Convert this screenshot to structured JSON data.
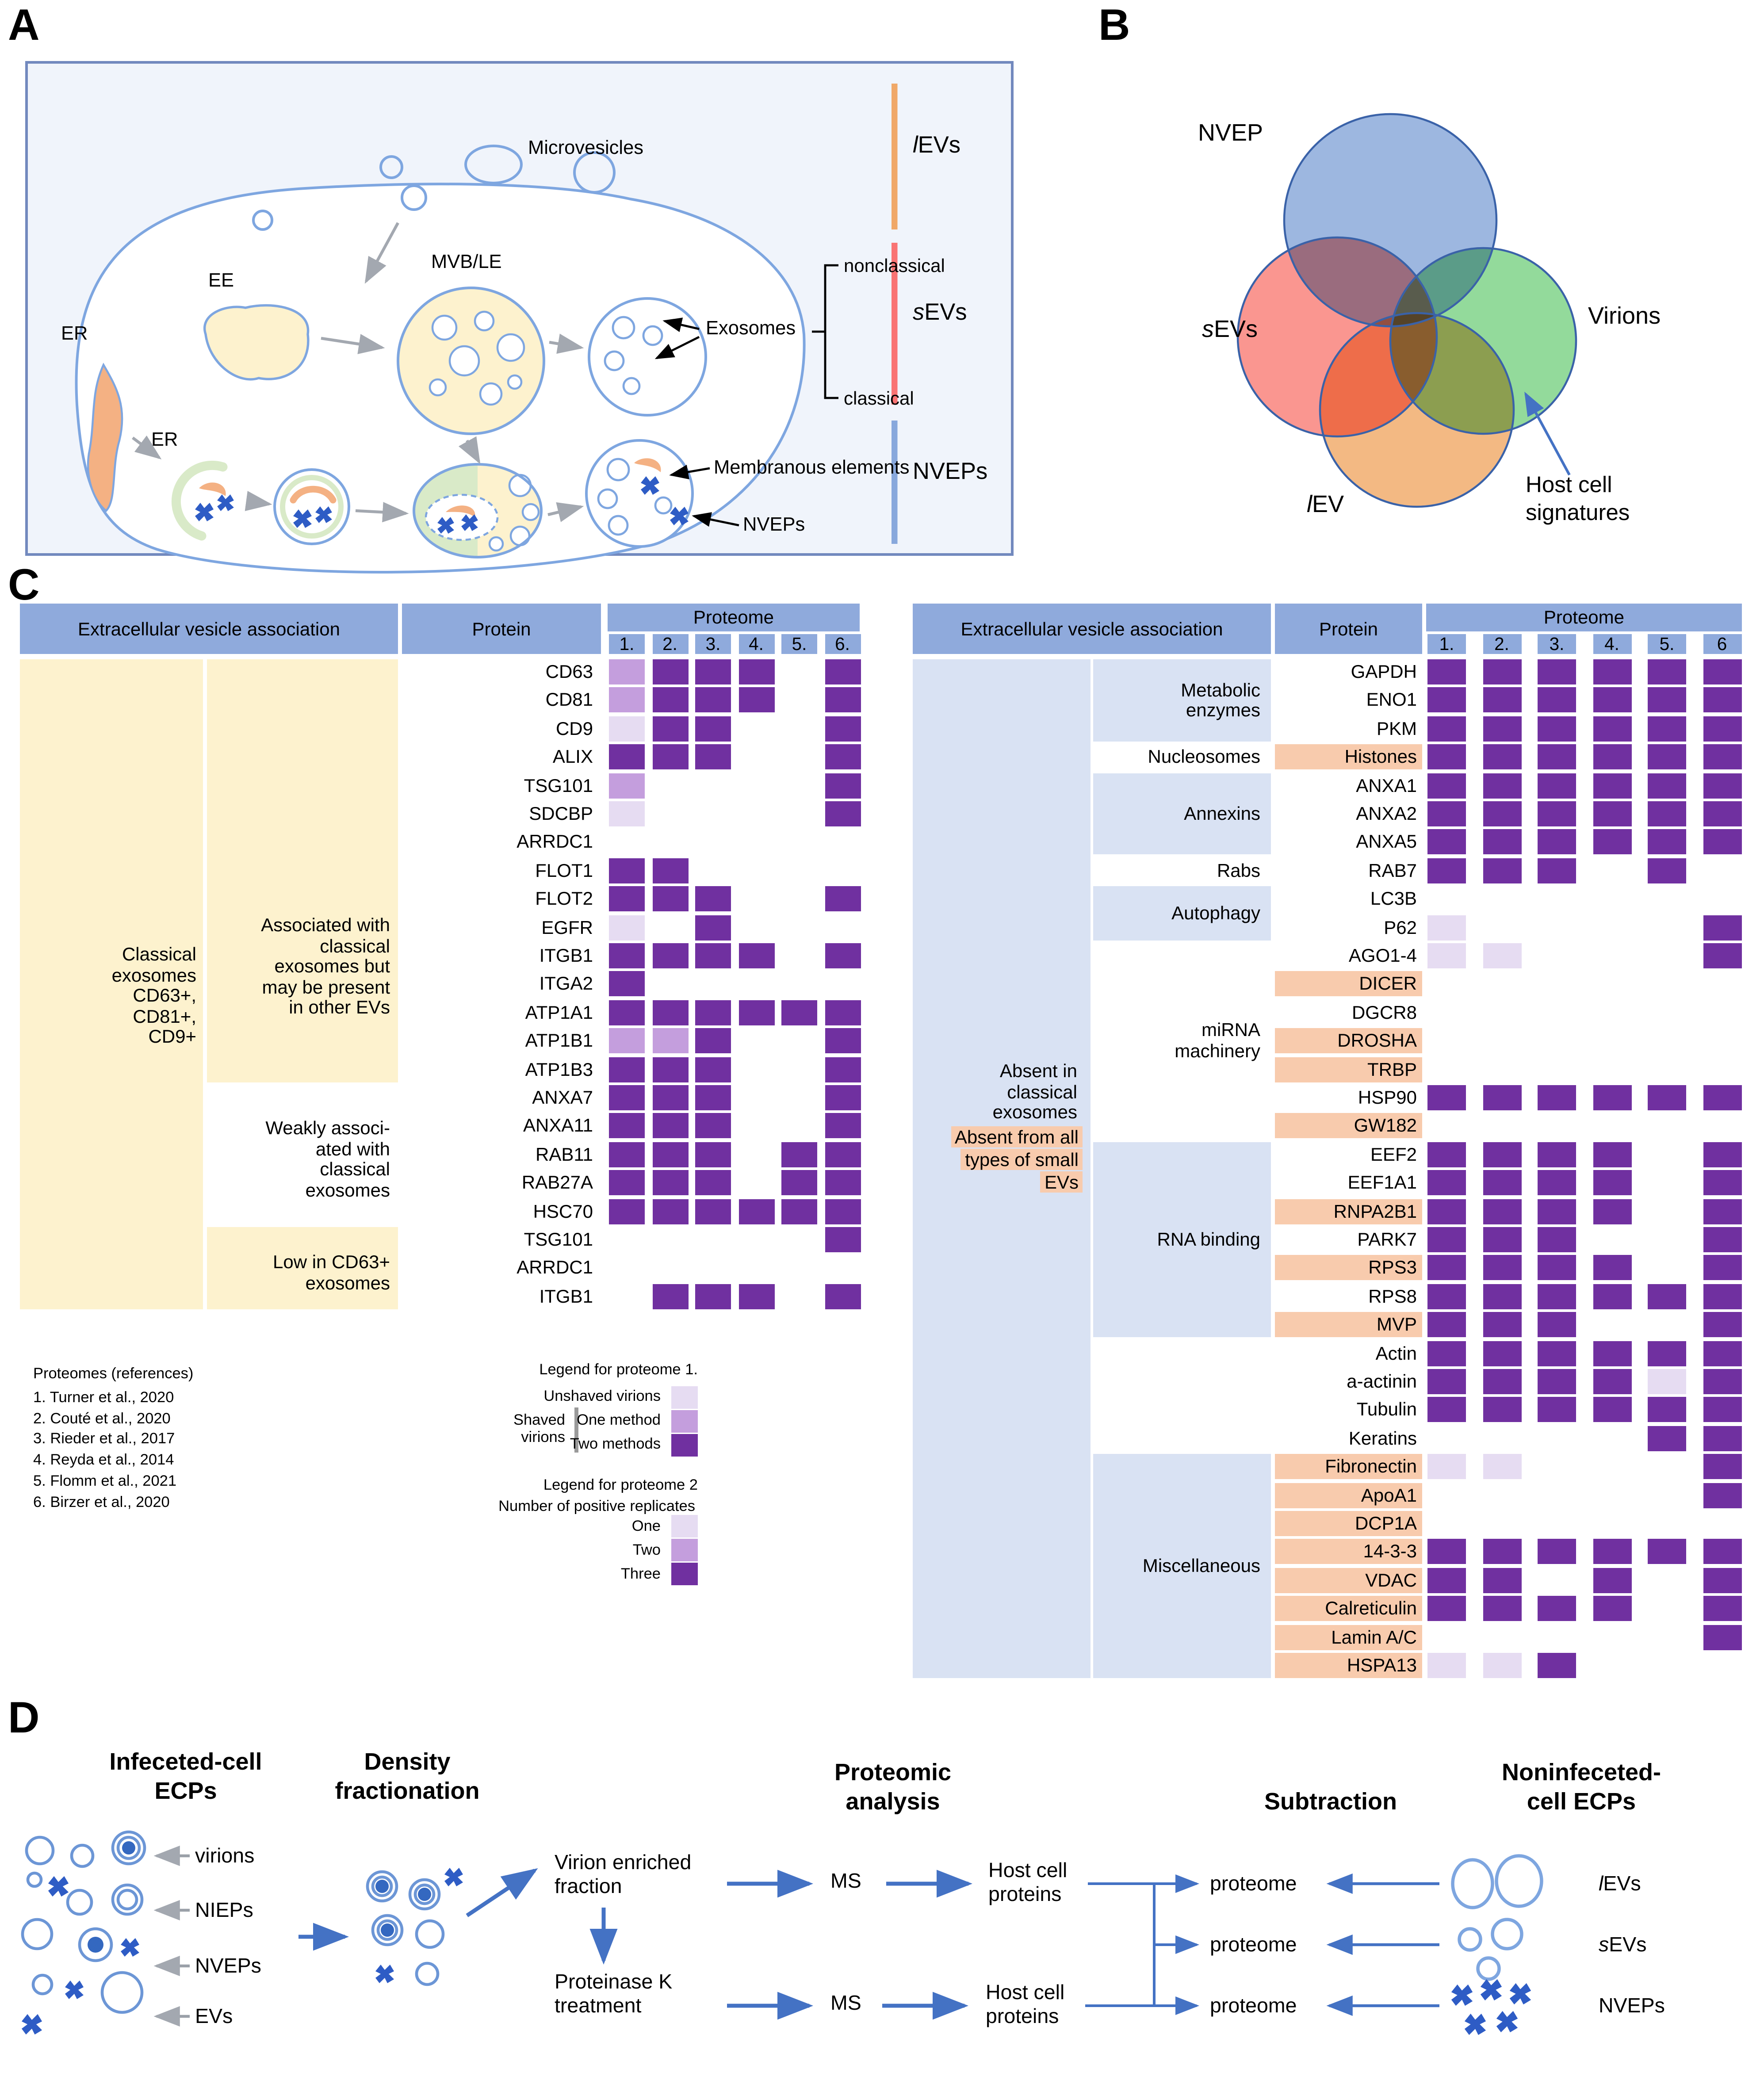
{
  "colors": {
    "header_blue": "#8FAADC",
    "panel_bg": "#F0F4FB",
    "panel_border": "#7289BE",
    "light_blue_box": "#D9E2F3",
    "beige_box": "#FDF2CE",
    "orange_highlight": "#F8CBAD",
    "purple_dark": "#7030A0",
    "purple_medium": "#C49EDD",
    "purple_light": "#E6DCF2",
    "membrane_blue": "#7EA6E0",
    "er_orange": "#F4B183",
    "phagophore_green": "#D9EAC8",
    "capsid_blue": "#2E5CC5",
    "arrow_gray": "#A3A8B0",
    "arrow_blue": "#4472C4",
    "bar_orange": "#F0A868",
    "bar_red": "#F97373",
    "bar_blue": "#88A8DC",
    "venn_nvep": "#7C9FD6",
    "venn_sevs": "#F8736B",
    "venn_virions": "#6FCE79",
    "venn_lev": "#EFA259"
  },
  "panelA": {
    "label": "A",
    "microvesicles": "Microvesicles",
    "ee": "EE",
    "er_upper": "ER",
    "er_lower": "ER",
    "mvb": "MVB/LE",
    "exosomes": "Exosomes",
    "nonclassical": "nonclassical",
    "classical": "classical",
    "membranous_elements": "Membranous elements",
    "nveps": "NVEPs",
    "bars": [
      {
        "italic": "l",
        "text": "EVs",
        "color": "#F0A868"
      },
      {
        "italic": "s",
        "text": "EVs",
        "color": "#F97373"
      },
      {
        "italic": "",
        "text": "NVEPs",
        "color": "#88A8DC"
      }
    ]
  },
  "panelB": {
    "label": "B",
    "nvep": "NVEP",
    "virions": "Virions",
    "sevs": {
      "italic": "s",
      "text": "EVs"
    },
    "lev": {
      "italic": "l",
      "text": "EV"
    },
    "annotation_line1": "Host cell",
    "annotation_line2": "signatures"
  },
  "panelC": {
    "label": "C",
    "left_table": {
      "header_association": "Extracellular vesicle association",
      "header_protein": "Protein",
      "header_proteome": "Proteome",
      "columns": [
        "1.",
        "2.",
        "3.",
        "4.",
        "5.",
        "6."
      ],
      "outer_label_lines": [
        "Classical",
        "exosomes",
        "CD63+,",
        "CD81+,",
        "CD9+"
      ],
      "groups": [
        {
          "lines": [
            "Associated with",
            "classical",
            "exosomes but",
            "may be present",
            "in other EVs"
          ],
          "start": 0,
          "span": 15,
          "shaded": true
        },
        {
          "lines": [
            "Weakly associ-",
            "ated with",
            "classical",
            "exosomes"
          ],
          "start": 15,
          "span": 5,
          "shaded": false
        },
        {
          "lines": [
            "Low in CD63+",
            "exosomes"
          ],
          "start": 20,
          "span": 3,
          "shaded": true
        }
      ],
      "rows": [
        {
          "p": "CD63",
          "c": [
            2,
            3,
            3,
            3,
            0,
            3
          ]
        },
        {
          "p": "CD81",
          "c": [
            2,
            3,
            3,
            3,
            0,
            3
          ]
        },
        {
          "p": "CD9",
          "c": [
            1,
            3,
            3,
            0,
            0,
            3
          ]
        },
        {
          "p": "ALIX",
          "c": [
            3,
            3,
            3,
            0,
            0,
            3
          ]
        },
        {
          "p": "TSG101",
          "c": [
            2,
            0,
            0,
            0,
            0,
            3
          ]
        },
        {
          "p": "SDCBP",
          "c": [
            1,
            0,
            0,
            0,
            0,
            3
          ]
        },
        {
          "p": "ARRDC1",
          "c": [
            0,
            0,
            0,
            0,
            0,
            0
          ]
        },
        {
          "p": "FLOT1",
          "c": [
            3,
            3,
            0,
            0,
            0,
            0
          ]
        },
        {
          "p": "FLOT2",
          "c": [
            3,
            3,
            3,
            0,
            0,
            3
          ]
        },
        {
          "p": "EGFR",
          "c": [
            1,
            0,
            3,
            0,
            0,
            0
          ]
        },
        {
          "p": "ITGB1",
          "c": [
            3,
            3,
            3,
            3,
            0,
            3
          ]
        },
        {
          "p": "ITGA2",
          "c": [
            3,
            0,
            0,
            0,
            0,
            0
          ]
        },
        {
          "p": "ATP1A1",
          "c": [
            3,
            3,
            3,
            3,
            3,
            3
          ]
        },
        {
          "p": "ATP1B1",
          "c": [
            2,
            2,
            3,
            0,
            0,
            3
          ]
        },
        {
          "p": "ATP1B3",
          "c": [
            3,
            3,
            3,
            0,
            0,
            3
          ]
        },
        {
          "p": "ANXA7",
          "c": [
            3,
            3,
            3,
            0,
            0,
            3
          ]
        },
        {
          "p": "ANXA11",
          "c": [
            3,
            3,
            3,
            0,
            0,
            3
          ]
        },
        {
          "p": "RAB11",
          "c": [
            3,
            3,
            3,
            0,
            3,
            3
          ]
        },
        {
          "p": "RAB27A",
          "c": [
            3,
            3,
            3,
            0,
            3,
            3
          ]
        },
        {
          "p": "HSC70",
          "c": [
            3,
            3,
            3,
            3,
            3,
            3
          ]
        },
        {
          "p": "TSG101",
          "c": [
            0,
            0,
            0,
            0,
            0,
            3
          ]
        },
        {
          "p": "ARRDC1",
          "c": [
            0,
            0,
            0,
            0,
            0,
            0
          ]
        },
        {
          "p": "ITGB1",
          "c": [
            0,
            3,
            3,
            3,
            0,
            3
          ]
        }
      ]
    },
    "right_table": {
      "header_association": "Extracellular vesicle association",
      "header_protein": "Protein",
      "header_proteome": "Proteome",
      "columns": [
        "1.",
        "2.",
        "3.",
        "4.",
        "5.",
        "6"
      ],
      "outer_blocks": [
        {
          "lines": [
            "Absent in",
            "classical",
            "exosomes"
          ],
          "highlighted": false
        },
        {
          "lines": [
            "Absent from all",
            "types of small",
            "EVs"
          ],
          "highlighted": true
        }
      ],
      "groups": [
        {
          "label_lines": [
            "Metabolic",
            "enzymes"
          ],
          "start": 0,
          "span": 3,
          "shaded": true
        },
        {
          "label_lines": [
            "Nucleosomes"
          ],
          "start": 3,
          "span": 1,
          "shaded": false
        },
        {
          "label_lines": [
            "Annexins"
          ],
          "start": 4,
          "span": 3,
          "shaded": true
        },
        {
          "label_lines": [
            "Rabs"
          ],
          "start": 7,
          "span": 1,
          "shaded": false
        },
        {
          "label_lines": [
            "Autophagy"
          ],
          "start": 8,
          "span": 2,
          "shaded": true
        },
        {
          "label_lines": [
            "miRNA",
            "machinery"
          ],
          "start": 10,
          "span": 7,
          "shaded": false
        },
        {
          "label_lines": [
            "RNA binding"
          ],
          "start": 17,
          "span": 7,
          "shaded": true
        },
        {
          "label_lines": [],
          "start": 24,
          "span": 4,
          "shaded": false
        },
        {
          "label_lines": [
            "Miscellaneous"
          ],
          "start": 28,
          "span": 8,
          "shaded": true
        }
      ],
      "rows": [
        {
          "p": "GAPDH",
          "h": false,
          "c": [
            3,
            3,
            3,
            3,
            3,
            3
          ]
        },
        {
          "p": "ENO1",
          "h": false,
          "c": [
            3,
            3,
            3,
            3,
            3,
            3
          ]
        },
        {
          "p": "PKM",
          "h": false,
          "c": [
            3,
            3,
            3,
            3,
            3,
            3
          ]
        },
        {
          "p": "Histones",
          "h": true,
          "c": [
            3,
            3,
            3,
            3,
            3,
            3
          ]
        },
        {
          "p": "ANXA1",
          "h": false,
          "c": [
            3,
            3,
            3,
            3,
            3,
            3
          ]
        },
        {
          "p": "ANXA2",
          "h": false,
          "c": [
            3,
            3,
            3,
            3,
            3,
            3
          ]
        },
        {
          "p": "ANXA5",
          "h": false,
          "c": [
            3,
            3,
            3,
            3,
            3,
            3
          ]
        },
        {
          "p": "RAB7",
          "h": false,
          "c": [
            3,
            3,
            3,
            0,
            3,
            0
          ]
        },
        {
          "p": "LC3B",
          "h": false,
          "c": [
            0,
            0,
            0,
            0,
            0,
            0
          ]
        },
        {
          "p": "P62",
          "h": false,
          "c": [
            1,
            0,
            0,
            0,
            0,
            3
          ]
        },
        {
          "p": "AGO1-4",
          "h": false,
          "c": [
            1,
            1,
            0,
            0,
            0,
            3
          ]
        },
        {
          "p": "DICER",
          "h": true,
          "c": [
            0,
            0,
            0,
            0,
            0,
            0
          ]
        },
        {
          "p": "DGCR8",
          "h": false,
          "c": [
            0,
            0,
            0,
            0,
            0,
            0
          ]
        },
        {
          "p": "DROSHA",
          "h": true,
          "c": [
            0,
            0,
            0,
            0,
            0,
            0
          ]
        },
        {
          "p": "TRBP",
          "h": true,
          "c": [
            0,
            0,
            0,
            0,
            0,
            0
          ]
        },
        {
          "p": "HSP90",
          "h": false,
          "c": [
            3,
            3,
            3,
            3,
            3,
            3
          ]
        },
        {
          "p": "GW182",
          "h": true,
          "c": [
            0,
            0,
            0,
            0,
            0,
            0
          ]
        },
        {
          "p": "EEF2",
          "h": false,
          "c": [
            3,
            3,
            3,
            3,
            0,
            3
          ]
        },
        {
          "p": "EEF1A1",
          "h": false,
          "c": [
            3,
            3,
            3,
            3,
            0,
            3
          ]
        },
        {
          "p": "RNPA2B1",
          "h": true,
          "c": [
            3,
            3,
            3,
            3,
            0,
            3
          ]
        },
        {
          "p": "PARK7",
          "h": false,
          "c": [
            3,
            3,
            3,
            0,
            0,
            3
          ]
        },
        {
          "p": "RPS3",
          "h": true,
          "c": [
            3,
            3,
            3,
            3,
            0,
            3
          ]
        },
        {
          "p": "RPS8",
          "h": false,
          "c": [
            3,
            3,
            3,
            3,
            3,
            3
          ]
        },
        {
          "p": "MVP",
          "h": true,
          "c": [
            3,
            3,
            3,
            0,
            0,
            3
          ]
        },
        {
          "p": "Actin",
          "h": false,
          "c": [
            3,
            3,
            3,
            3,
            3,
            3
          ]
        },
        {
          "p": "a-actinin",
          "h": false,
          "c": [
            3,
            3,
            3,
            3,
            1,
            3
          ]
        },
        {
          "p": "Tubulin",
          "h": false,
          "c": [
            3,
            3,
            3,
            3,
            3,
            3
          ]
        },
        {
          "p": "Keratins",
          "h": false,
          "c": [
            0,
            0,
            0,
            0,
            3,
            3
          ]
        },
        {
          "p": "Fibronectin",
          "h": true,
          "c": [
            1,
            1,
            0,
            0,
            0,
            3
          ]
        },
        {
          "p": "ApoA1",
          "h": true,
          "c": [
            0,
            0,
            0,
            0,
            0,
            3
          ]
        },
        {
          "p": "DCP1A",
          "h": true,
          "c": [
            0,
            0,
            0,
            0,
            0,
            0
          ]
        },
        {
          "p": "14-3-3",
          "h": true,
          "c": [
            3,
            3,
            3,
            3,
            3,
            3
          ]
        },
        {
          "p": "VDAC",
          "h": true,
          "c": [
            3,
            3,
            0,
            3,
            0,
            3
          ]
        },
        {
          "p": "Calreticulin",
          "h": true,
          "c": [
            3,
            3,
            3,
            3,
            0,
            3
          ]
        },
        {
          "p": "Lamin A/C",
          "h": true,
          "c": [
            0,
            0,
            0,
            0,
            0,
            3
          ]
        },
        {
          "p": "HSPA13",
          "h": true,
          "c": [
            1,
            1,
            3,
            0,
            0,
            0
          ]
        }
      ]
    },
    "references": {
      "title": "Proteomes (references)",
      "items": [
        "1. Turner et al., 2020",
        "2. Couté et al., 2020",
        "3. Rieder et al., 2017",
        "4. Reyda et al., 2014",
        "5. Flomm et al., 2021",
        "6. Birzer et al., 2020"
      ]
    },
    "legend1": {
      "title": "Legend for proteome 1.",
      "unshaved": "Unshaved virions",
      "shaved_line1": "Shaved",
      "shaved_line2": "virions",
      "one_method": "One method",
      "two_methods": "Two methods"
    },
    "legend2": {
      "title": "Legend for proteome 2",
      "subtitle": "Number of positive replicates",
      "one": "One",
      "two": "Two",
      "three": "Three"
    }
  },
  "panelD": {
    "label": "D",
    "headings": {
      "infected_line1": "Infeceted-cell",
      "infected_line2": "ECPs",
      "density_line1": "Density",
      "density_line2": "fractionation",
      "proteomic_line1": "Proteomic",
      "proteomic_line2": "analysis",
      "subtraction": "Subtraction",
      "noninfected_line1": "Noninfeceted-",
      "noninfected_line2": "cell ECPs"
    },
    "left_labels": [
      "virions",
      "NIEPs",
      "NVEPs",
      "EVs"
    ],
    "virion_fraction_line1": "Virion enriched",
    "virion_fraction_line2": "fraction",
    "proteinase_line1": "Proteinase K",
    "proteinase_line2": "treatment",
    "ms": "MS",
    "host_line1": "Host cell",
    "host_line2": "proteins",
    "proteome": "proteome",
    "right_labels": [
      {
        "italic": "l",
        "text": "EVs"
      },
      {
        "italic": "s",
        "text": "EVs"
      },
      {
        "italic": "",
        "text": "NVEPs"
      }
    ]
  }
}
